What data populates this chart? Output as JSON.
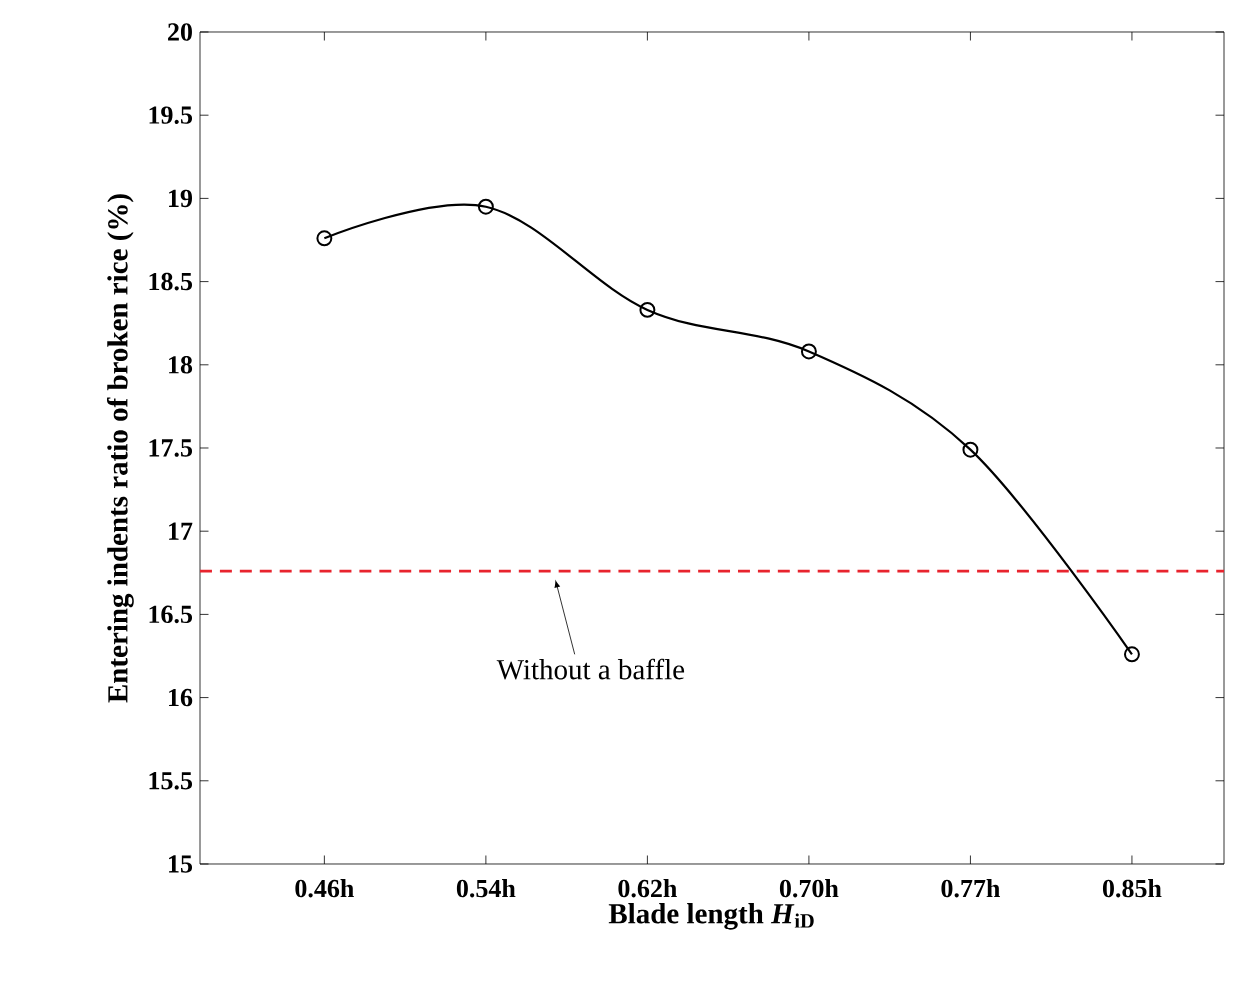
{
  "chart_data": {
    "type": "line",
    "xlabel": "Blade length *H*$_{iD}$",
    "ylabel": "Entering indents ratio of broken rice (%)",
    "categories": [
      "0.46h",
      "0.54h",
      "0.62h",
      "0.70h",
      "0.77h",
      "0.85h"
    ],
    "series": [
      {
        "color": "#000000",
        "values": [
          18.76,
          18.95,
          18.33,
          18.08,
          17.49,
          16.26
        ]
      }
    ],
    "ylim": [
      15,
      20
    ],
    "yticks": [
      15,
      15.5,
      16,
      16.5,
      17,
      17.5,
      18,
      18.5,
      19,
      19.5,
      20
    ],
    "ref_lines": [
      {
        "axis": "y",
        "value": 16.76,
        "label": "Without a baffle",
        "color": "#e8242e",
        "line_style": "dashed"
      }
    ],
    "marker": "circle",
    "line_style": "solid"
  }
}
